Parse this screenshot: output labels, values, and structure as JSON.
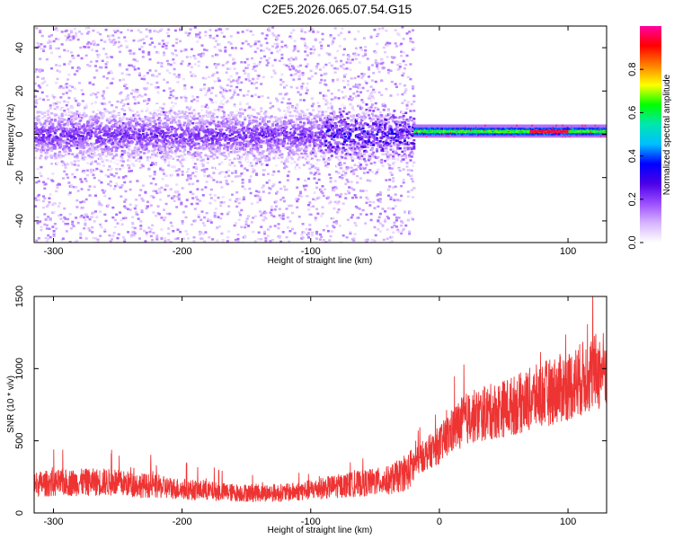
{
  "title": "C2E5.2026.065.07.54.G15",
  "chart_data": [
    {
      "type": "heatmap",
      "name": "spectrogram",
      "xlabel": "Height of straight line (km)",
      "ylabel": "Frequency (Hz)",
      "xlim": [
        -315,
        130
      ],
      "ylim": [
        -50,
        50
      ],
      "xticks": [
        -300,
        -200,
        -100,
        0,
        100
      ],
      "yticks": [
        -40,
        -20,
        0,
        20,
        40
      ],
      "colorbar": {
        "label": "Normalized spectral amplitude",
        "range": [
          0,
          1
        ],
        "ticks": [
          0.0,
          0.2,
          0.4,
          0.6,
          0.8
        ],
        "colors": [
          "#ffffff",
          "#d6b4ff",
          "#9a4dff",
          "#4b00e6",
          "#0000ff",
          "#00bfff",
          "#00e6b0",
          "#00ff00",
          "#ffff00",
          "#ff8000",
          "#ff0000",
          "#ff00a0"
        ]
      },
      "regions": [
        {
          "x_range": [
            -315,
            -20
          ],
          "center_freq": 0,
          "core_halfwidth_hz": 8,
          "core_amplitude": 0.12,
          "scatter_range_hz": [
            -50,
            50
          ]
        },
        {
          "x_range": [
            -20,
            130
          ],
          "center_freq": 2,
          "core_halfwidth_hz": 1.5,
          "core_amplitude": 0.55,
          "scatter_range_hz": [
            -5,
            5
          ]
        }
      ]
    },
    {
      "type": "line",
      "name": "snr",
      "xlabel": "Height of straight line (km)",
      "ylabel": "SNR (10 * v/v)",
      "xlim": [
        -315,
        130
      ],
      "ylim": [
        0,
        1500
      ],
      "xticks": [
        -300,
        -200,
        -100,
        0,
        100
      ],
      "yticks": [
        0,
        500,
        1000,
        1500
      ],
      "color": "#ee3333",
      "series": [
        {
          "name": "SNR",
          "x": [
            -315,
            -290,
            -260,
            -240,
            -200,
            -160,
            -120,
            -100,
            -80,
            -40,
            -25,
            -15,
            0,
            10,
            20,
            40,
            60,
            80,
            100,
            120,
            130
          ],
          "y": [
            200,
            210,
            215,
            200,
            165,
            140,
            140,
            160,
            185,
            225,
            280,
            380,
            470,
            570,
            650,
            700,
            750,
            820,
            880,
            970,
            1000
          ]
        }
      ]
    }
  ]
}
